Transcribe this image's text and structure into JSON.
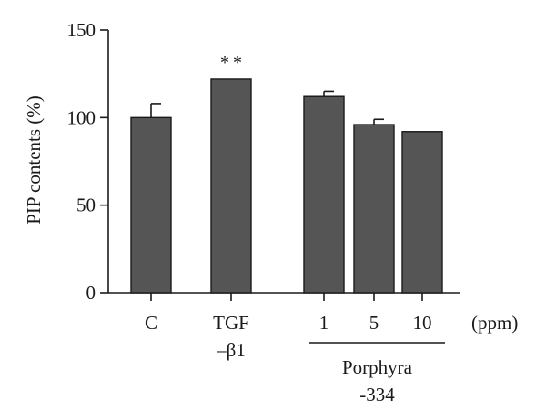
{
  "chart_data": {
    "type": "bar",
    "categories": [
      "C",
      "TGF\n–β1",
      "1",
      "5",
      "10"
    ],
    "values": [
      100,
      122,
      112,
      96,
      92
    ],
    "errors": [
      8,
      0,
      3,
      3,
      0
    ],
    "annotations": [
      {
        "category_index": 1,
        "text": "**"
      }
    ],
    "xlabel": "",
    "ylabel": "PIP contents (%)",
    "ylim": [
      0,
      150
    ],
    "yticks": [
      0,
      50,
      100,
      150
    ],
    "unit_label": "(ppm)",
    "group_label": {
      "text": "Porphyra\n-334",
      "category_indices": [
        2,
        3,
        4
      ]
    },
    "bar_color": "#555555",
    "grid": false,
    "legend": "none"
  }
}
